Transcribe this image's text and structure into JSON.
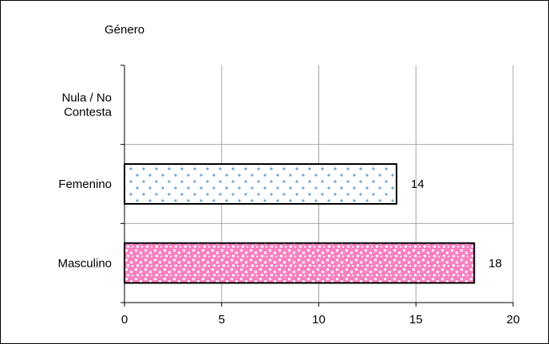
{
  "chart_data": {
    "type": "bar",
    "orientation": "horizontal",
    "title": "Género",
    "categories": [
      "Nula / No Contesta",
      "Femenino",
      "Masculino"
    ],
    "category_lines": [
      [
        "Nula / No",
        "Contesta"
      ],
      [
        "Femenino"
      ],
      [
        "Masculino"
      ]
    ],
    "values": [
      null,
      14,
      18
    ],
    "data_labels": [
      "",
      "14",
      "18"
    ],
    "xlim": [
      0,
      20
    ],
    "xticks": [
      0,
      5,
      10,
      15,
      20
    ],
    "grid": true,
    "legend": "none",
    "colors": {
      "femenino_fill": "#ffffff",
      "femenino_dots": "#6fa8dc",
      "masculino_fill": "#ff80c0",
      "masculino_pattern": "#ffffff",
      "grid": "#a6a6a6",
      "bar_border": "#000000"
    }
  }
}
